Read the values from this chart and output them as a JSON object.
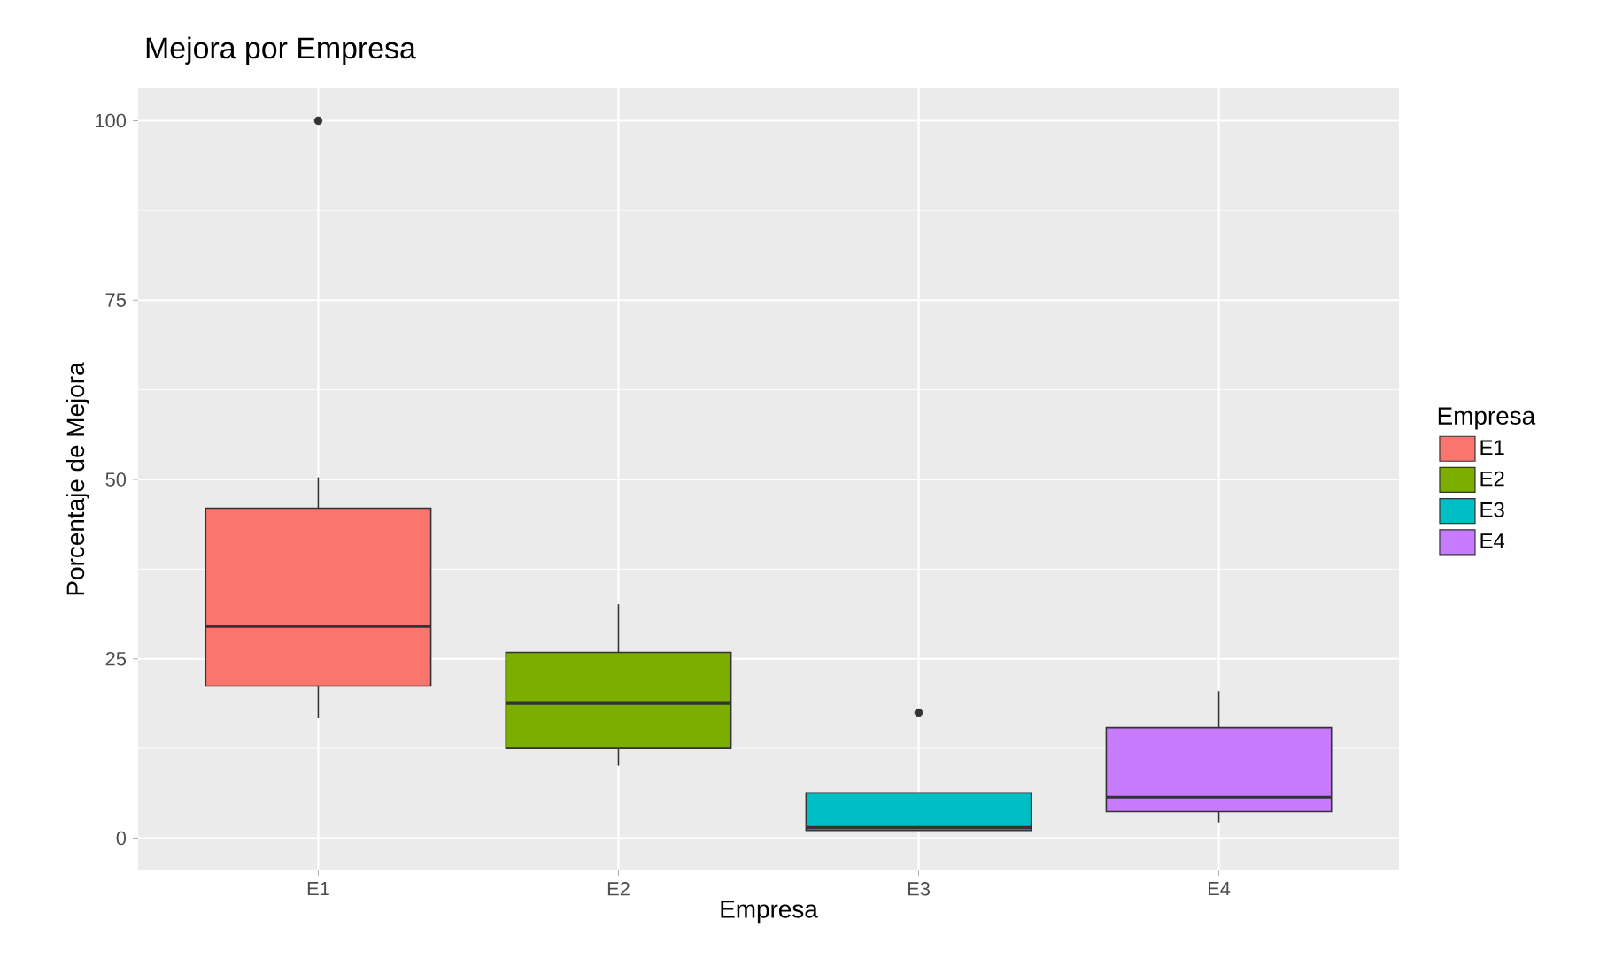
{
  "chart_data": {
    "type": "box",
    "title": "Mejora por Empresa",
    "xlabel": "Empresa",
    "ylabel": "Porcentaje de Mejora",
    "legend_title": "Empresa",
    "categories": [
      "E1",
      "E2",
      "E3",
      "E4"
    ],
    "series": [
      {
        "name": "E1",
        "color": "#f8766d",
        "boxes": [
          {
            "low": 16.7,
            "q1": 21.2,
            "median": 29.5,
            "q3": 46.0,
            "high": 50.3,
            "outliers": [
              100
            ]
          },
          null,
          null,
          null
        ]
      },
      {
        "name": "E2",
        "color": "#7cae00",
        "boxes": [
          null,
          {
            "low": 10.1,
            "q1": 12.5,
            "median": 18.8,
            "q3": 25.9,
            "high": 32.6
          },
          null,
          null
        ]
      },
      {
        "name": "E3",
        "color": "#00bfc4",
        "boxes": [
          null,
          null,
          {
            "low": 1.1,
            "q1": 1.1,
            "median": 1.5,
            "q3": 6.3,
            "high": 6.3,
            "outliers": [
              17.5
            ]
          },
          null
        ]
      },
      {
        "name": "E4",
        "color": "#c77cff",
        "boxes": [
          null,
          null,
          null,
          {
            "low": 2.2,
            "q1": 3.7,
            "median": 5.7,
            "q3": 15.4,
            "high": 20.5
          }
        ]
      }
    ],
    "ylim": [
      -4.5,
      104.5
    ],
    "yticks": [
      0,
      25,
      50,
      75,
      100
    ],
    "grid": true,
    "legend": "right"
  }
}
